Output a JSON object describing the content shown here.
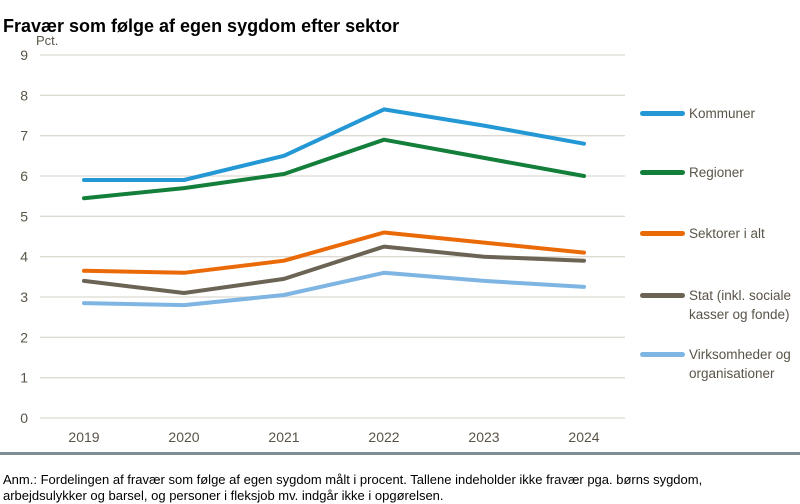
{
  "title": "Fravær som følge af egen sygdom efter sektor",
  "chart_data": {
    "type": "line",
    "title": "Fravær som følge af egen sygdom efter sektor",
    "ylabel": "Pct.",
    "xlabel": "",
    "categories": [
      "2019",
      "2020",
      "2021",
      "2022",
      "2023",
      "2024"
    ],
    "series": [
      {
        "name": "Kommuner",
        "color": "#2498d5",
        "values": [
          5.9,
          5.9,
          6.5,
          7.65,
          7.25,
          6.8
        ]
      },
      {
        "name": "Regioner",
        "color": "#137f3a",
        "values": [
          5.45,
          5.7,
          6.05,
          6.9,
          6.45,
          6.0
        ]
      },
      {
        "name": "Sektorer i alt",
        "color": "#eb6a08",
        "values": [
          3.65,
          3.6,
          3.9,
          4.6,
          4.35,
          4.1
        ]
      },
      {
        "name": "Stat (inkl. sociale kasser og fonde)",
        "color": "#6b6455",
        "values": [
          3.4,
          3.1,
          3.45,
          4.25,
          4.0,
          3.9
        ]
      },
      {
        "name": "Virksomheder og organisationer",
        "color": "#7fb5e2",
        "values": [
          2.85,
          2.8,
          3.05,
          3.6,
          3.4,
          3.25
        ]
      }
    ],
    "ylim": [
      0,
      9
    ],
    "ytick_step": 1,
    "grid": "horizontal",
    "legend_position": "right"
  },
  "footnote": "Anm.: Fordelingen af fravær som følge af egen sygdom målt i procent. Tallene indeholder ikke fravær pga. børns sygdom, arbejdsulykker og barsel, og personer i fleksjob mv. indgår ikke i opgørelsen."
}
